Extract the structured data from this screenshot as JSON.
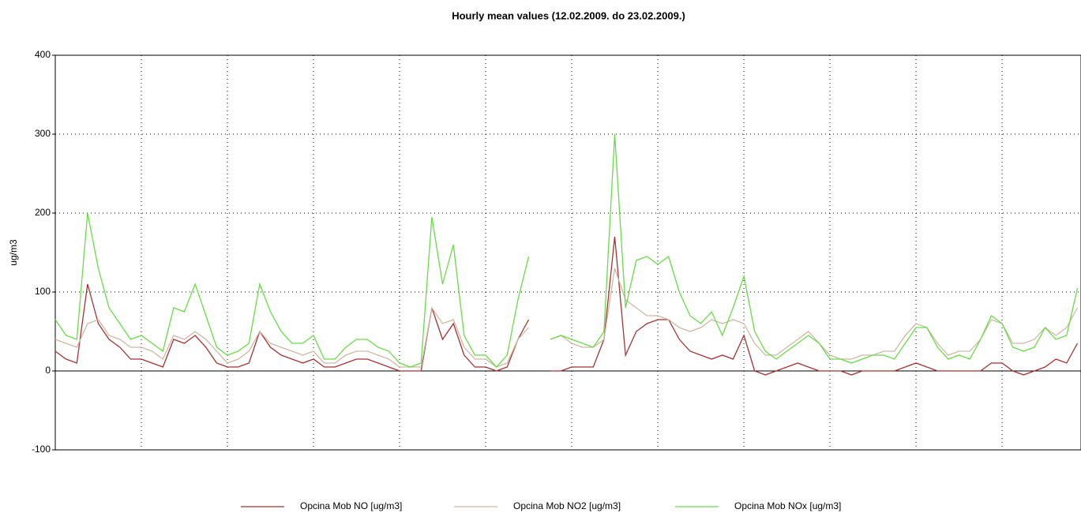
{
  "chart_data": {
    "type": "line",
    "title": "Hourly mean values (12.02.2009. do 23.02.2009.)",
    "y_label": "ug/m3",
    "x": [
      0,
      3,
      6,
      9,
      12,
      15,
      18,
      21,
      24,
      27,
      30,
      33,
      36,
      39,
      42,
      45,
      48,
      51,
      54,
      57,
      60,
      63,
      66,
      69,
      72,
      75,
      78,
      81,
      84,
      87,
      90,
      93,
      96,
      99,
      102,
      105,
      108,
      111,
      114,
      117,
      120,
      123,
      126,
      129,
      132,
      135,
      138,
      141,
      144,
      147,
      150,
      153,
      156,
      159,
      162,
      165,
      168,
      171,
      174,
      177,
      180,
      183,
      186,
      189,
      192,
      195,
      198,
      201,
      204,
      207,
      210,
      213,
      216,
      219,
      222,
      225,
      228,
      231,
      234,
      237,
      240,
      243,
      246,
      249,
      252,
      255,
      258,
      261,
      264,
      267,
      270,
      273,
      276,
      279,
      282,
      285
    ],
    "xlim": [
      0,
      286
    ],
    "xticks": [
      24,
      48,
      72,
      96,
      120,
      144,
      168,
      192,
      216,
      240,
      264
    ],
    "ylim": [
      -100,
      400
    ],
    "yticks": [
      -100,
      0,
      100,
      200,
      300,
      400
    ],
    "grid": true,
    "legend": "bottom",
    "series": [
      {
        "name": "Opcina Mob NO [ug/m3]",
        "color": "#a83232",
        "values": [
          25,
          15,
          10,
          110,
          60,
          40,
          30,
          15,
          15,
          10,
          5,
          40,
          35,
          45,
          30,
          10,
          5,
          5,
          10,
          50,
          30,
          20,
          15,
          10,
          15,
          5,
          5,
          10,
          15,
          15,
          10,
          5,
          0,
          0,
          0,
          80,
          40,
          60,
          20,
          5,
          5,
          0,
          5,
          40,
          65,
          null,
          0,
          0,
          5,
          5,
          5,
          40,
          170,
          20,
          50,
          60,
          65,
          65,
          40,
          25,
          20,
          15,
          20,
          15,
          45,
          0,
          -5,
          0,
          5,
          10,
          5,
          0,
          0,
          0,
          -5,
          0,
          0,
          0,
          0,
          5,
          10,
          5,
          0,
          0,
          0,
          0,
          0,
          10,
          10,
          0,
          -5,
          0,
          5,
          15,
          10,
          35
        ]
      },
      {
        "name": "Opcina Mob NO2 [ug/m3]",
        "color": "#cdb8a4",
        "values": [
          40,
          35,
          30,
          60,
          65,
          45,
          40,
          30,
          30,
          25,
          15,
          45,
          40,
          50,
          40,
          25,
          10,
          15,
          25,
          50,
          35,
          30,
          25,
          20,
          25,
          10,
          10,
          20,
          25,
          25,
          20,
          15,
          5,
          5,
          5,
          80,
          60,
          65,
          30,
          15,
          15,
          5,
          10,
          40,
          55,
          null,
          40,
          45,
          35,
          30,
          30,
          40,
          130,
          90,
          80,
          70,
          70,
          65,
          55,
          50,
          55,
          65,
          60,
          65,
          60,
          35,
          20,
          20,
          30,
          40,
          50,
          35,
          20,
          15,
          15,
          20,
          20,
          25,
          25,
          45,
          60,
          55,
          35,
          20,
          25,
          25,
          40,
          65,
          60,
          35,
          35,
          40,
          55,
          45,
          55,
          80
        ]
      },
      {
        "name": "Opcina Mob NOx [ug/m3]",
        "color": "#66dd44",
        "values": [
          65,
          45,
          40,
          200,
          130,
          80,
          60,
          40,
          45,
          35,
          25,
          80,
          75,
          110,
          70,
          30,
          20,
          25,
          35,
          110,
          75,
          50,
          35,
          35,
          45,
          15,
          15,
          30,
          40,
          40,
          30,
          25,
          10,
          5,
          10,
          195,
          110,
          160,
          45,
          20,
          20,
          5,
          20,
          90,
          145,
          null,
          40,
          45,
          40,
          35,
          30,
          50,
          300,
          80,
          140,
          145,
          135,
          145,
          100,
          70,
          60,
          75,
          45,
          80,
          120,
          50,
          25,
          15,
          25,
          35,
          45,
          35,
          15,
          15,
          10,
          15,
          20,
          20,
          15,
          35,
          55,
          55,
          30,
          15,
          20,
          15,
          40,
          70,
          60,
          30,
          25,
          30,
          55,
          40,
          45,
          105
        ]
      }
    ]
  }
}
